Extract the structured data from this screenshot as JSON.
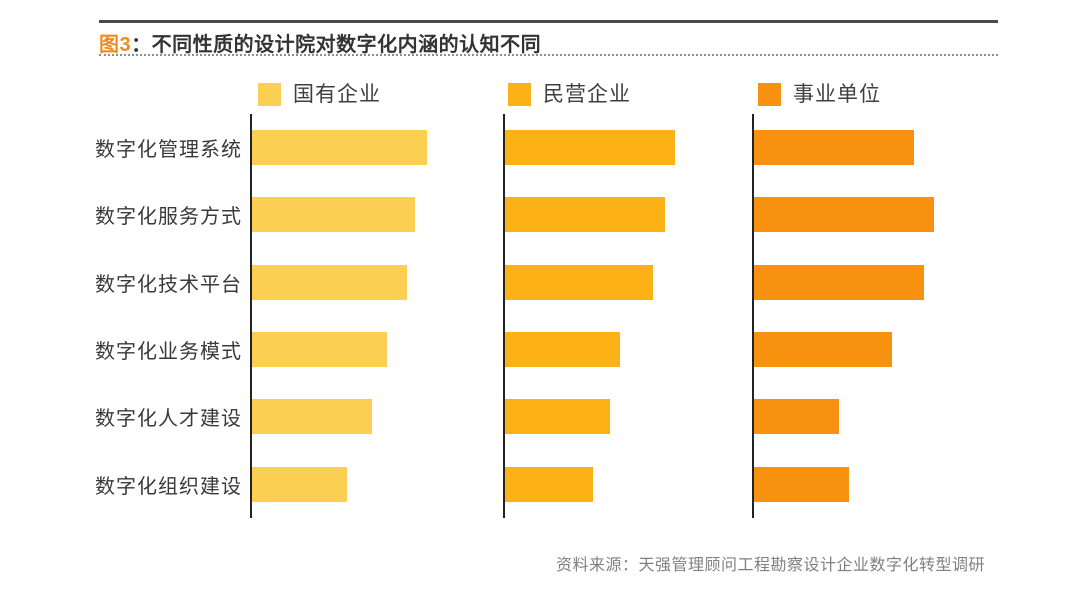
{
  "header": {
    "figure_label": "图3",
    "title_rest": "：不同性质的设计院对数字化内涵的认知不同",
    "accent_color": "#F28B1D"
  },
  "chart_data": {
    "type": "bar",
    "orientation": "horizontal",
    "layout": "three side-by-side panels (one per series) sharing one category axis on the left; each panel has its own vertical baseline; no gridlines, no numeric axis, no value labels",
    "legend_position": "top",
    "grid": false,
    "value_scale": "values estimated as percent of panel width (0-100); figure shows no numeric labels",
    "categories": [
      "数字化管理系统",
      "数字化服务方式",
      "数字化技术平台",
      "数字化业务模式",
      "数字化人才建设",
      "数字化组织建设"
    ],
    "series": [
      {
        "name": "国有企业",
        "color": "#FBD052",
        "values": [
          70,
          65,
          62,
          54,
          48,
          38
        ]
      },
      {
        "name": "民营企业",
        "color": "#FCB117",
        "values": [
          68,
          64,
          59,
          46,
          42,
          35
        ]
      },
      {
        "name": "事业单位",
        "color": "#F7910F",
        "values": [
          64,
          72,
          68,
          55,
          34,
          38
        ]
      }
    ]
  },
  "source": "资料来源：天强管理顾问工程勘察设计企业数字化转型调研"
}
